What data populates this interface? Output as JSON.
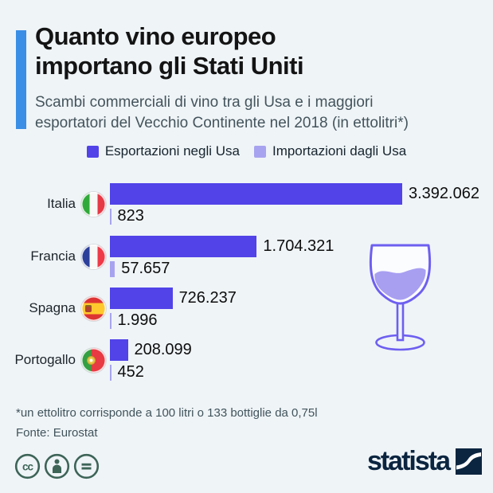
{
  "header": {
    "title_line1": "Quanto vino europeo",
    "title_line2": "importano gli Stati Uniti",
    "subtitle_line1": "Scambi commerciali di vino tra gli Usa e i maggiori",
    "subtitle_line2": "esportatori del Vecchio Continente nel 2018 (in ettolitri*)"
  },
  "colors": {
    "background": "#eff4f7",
    "accent_bar": "#3a8ee6",
    "export_bar": "#5143e8",
    "import_bar": "#a8a3ef",
    "cc_green": "#3d6457",
    "statista_navy": "#0b2540"
  },
  "chart_data": {
    "type": "bar",
    "orientation": "horizontal",
    "title": "Quanto vino europeo importano gli Stati Uniti",
    "unit": "ettolitri",
    "xlim": [
      0,
      3392062
    ],
    "legend_position": "top",
    "categories": [
      "Italia",
      "Francia",
      "Spagna",
      "Portogallo"
    ],
    "series": [
      {
        "name": "Esportazioni negli Usa",
        "color": "#5143e8",
        "values": [
          3392062,
          1704321,
          726237,
          208099
        ]
      },
      {
        "name": "Importazioni dagli Usa",
        "color": "#a8a3ef",
        "values": [
          823,
          57657,
          1996,
          452
        ]
      }
    ],
    "rows": [
      {
        "country": "Italia",
        "flag": "italia",
        "export_label": "3.392.062",
        "import_label": "823"
      },
      {
        "country": "Francia",
        "flag": "francia",
        "export_label": "1.704.321",
        "import_label": "57.657"
      },
      {
        "country": "Spagna",
        "flag": "spagna",
        "export_label": "726.237",
        "import_label": "1.996"
      },
      {
        "country": "Portogallo",
        "flag": "portogallo",
        "export_label": "208.099",
        "import_label": "452"
      }
    ]
  },
  "footer": {
    "note": "*un ettolitro corrisponde a 100 litri o 133 bottiglie da 0,75l",
    "source": "Fonte: Eurostat"
  },
  "branding": {
    "logo_text": "statista"
  }
}
